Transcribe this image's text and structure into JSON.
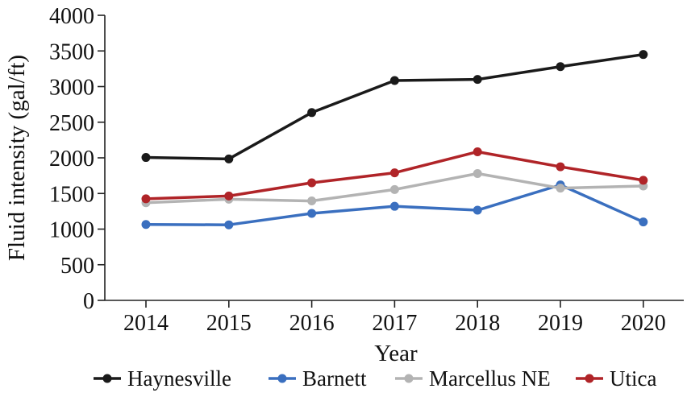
{
  "chart_data": {
    "type": "line",
    "xlabel": "Year",
    "ylabel": "Fluid intensity (gal/ft)",
    "categories": [
      "2014",
      "2015",
      "2016",
      "2017",
      "2018",
      "2019",
      "2020"
    ],
    "yticks": [
      "0",
      "500",
      "1000",
      "1500",
      "2000",
      "2500",
      "3000",
      "3500",
      "4000"
    ],
    "ylim": [
      0,
      4000
    ],
    "grid": false,
    "legend_position": "bottom",
    "series": [
      {
        "name": "Haynesville",
        "color": "#1a1a1a",
        "values": [
          2005,
          1985,
          2635,
          3085,
          3100,
          3280,
          3450
        ]
      },
      {
        "name": "Barnett",
        "color": "#3a6fbf",
        "values": [
          1065,
          1060,
          1220,
          1320,
          1265,
          1620,
          1100
        ]
      },
      {
        "name": "Marcellus NE",
        "color": "#b3b3b3",
        "values": [
          1370,
          1420,
          1395,
          1555,
          1780,
          1575,
          1605
        ]
      },
      {
        "name": "Utica",
        "color": "#b02428",
        "values": [
          1425,
          1465,
          1650,
          1790,
          2085,
          1875,
          1685
        ]
      }
    ]
  }
}
